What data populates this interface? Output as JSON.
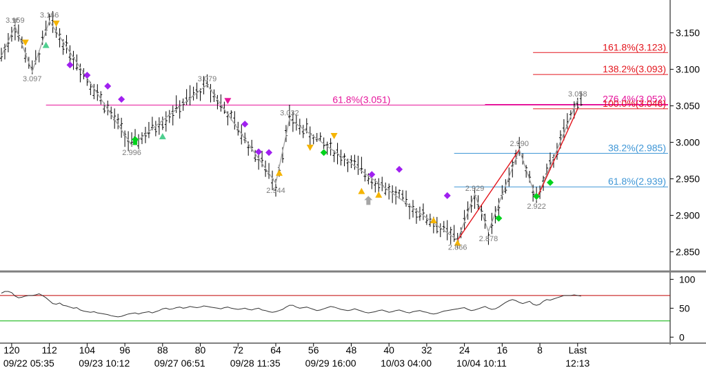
{
  "chart_data": {
    "type": "line",
    "title": "",
    "colors": {
      "price_bar": "#000000",
      "wave_line": "#a6a6a6",
      "fib_red": "#e3141c",
      "fib_magenta": "#e6159b",
      "fib_blue": "#3e96d6",
      "purple_marker": "#a020f0",
      "yellow_marker": "#f5b400",
      "green_marker": "#00d21c",
      "teal_marker": "#4fcf8f",
      "separator": "#7f7f7f",
      "osc_line": "#333333",
      "osc_upper": "#c00000",
      "osc_lower": "#00b000"
    },
    "price_panel": {
      "ylim": [
        2.825,
        3.195
      ],
      "yticks": [
        "3.150",
        "3.100",
        "3.050",
        "3.000",
        "2.950",
        "2.900",
        "2.850"
      ],
      "ytick_values": [
        3.15,
        3.1,
        3.05,
        3.0,
        2.95,
        2.9,
        2.85
      ],
      "swing_labels": [
        {
          "text": "3.159",
          "bar": 4,
          "price": 3.159,
          "pos": "above"
        },
        {
          "text": "3.166",
          "bar": 14,
          "price": 3.166,
          "pos": "above"
        },
        {
          "text": "3.097",
          "bar": 9,
          "price": 3.097,
          "pos": "below"
        },
        {
          "text": "2.996",
          "bar": 38,
          "price": 2.996,
          "pos": "below"
        },
        {
          "text": "3.079",
          "bar": 60,
          "price": 3.079,
          "pos": "above"
        },
        {
          "text": "2.944",
          "bar": 80,
          "price": 2.944,
          "pos": "below"
        },
        {
          "text": "3.032",
          "bar": 84,
          "price": 3.032,
          "pos": "above"
        },
        {
          "text": "2.866",
          "bar": 133,
          "price": 2.866,
          "pos": "below"
        },
        {
          "text": "2.929",
          "bar": 138,
          "price": 2.929,
          "pos": "above"
        },
        {
          "text": "2.878",
          "bar": 142,
          "price": 2.878,
          "pos": "below"
        },
        {
          "text": "2.990",
          "bar": 151,
          "price": 2.99,
          "pos": "above"
        },
        {
          "text": "2.922",
          "bar": 156,
          "price": 2.922,
          "pos": "below"
        },
        {
          "text": "3.058",
          "bar": 168,
          "price": 3.058,
          "pos": "above"
        }
      ],
      "fib_levels": [
        {
          "label": "161.8%(3.123)",
          "price": 3.123,
          "from_bar": 155,
          "color": "red"
        },
        {
          "label": "138.2%(3.093)",
          "price": 3.093,
          "from_bar": 155,
          "color": "red"
        },
        {
          "label": "61.8%(3.051)",
          "price": 3.051,
          "from_bar": 13,
          "color": "magenta",
          "label_bar": 105
        },
        {
          "label": "276.4%(3.052)",
          "price": 3.052,
          "from_bar": 141,
          "color": "magenta"
        },
        {
          "label": "100.0%(3.046)",
          "price": 3.046,
          "from_bar": 155,
          "color": "red"
        },
        {
          "label": "38.2%(2.985)",
          "price": 2.985,
          "from_bar": 132,
          "color": "blue"
        },
        {
          "label": "61.8%(2.939)",
          "price": 2.939,
          "from_bar": 132,
          "color": "blue"
        }
      ],
      "wave_lines": [
        {
          "color": "gray",
          "points": [
            [
              0,
              3.118
            ],
            [
              4,
              3.159
            ],
            [
              9,
              3.097
            ],
            [
              14,
              3.166
            ],
            [
              38,
              2.996
            ],
            [
              60,
              3.079
            ],
            [
              80,
              2.944
            ],
            [
              84,
              3.032
            ],
            [
              133,
              2.866
            ],
            [
              138,
              2.929
            ],
            [
              142,
              2.878
            ],
            [
              151,
              2.99
            ],
            [
              156,
              2.922
            ],
            [
              168,
              3.058
            ]
          ]
        },
        {
          "color": "red",
          "points": [
            [
              133,
              2.866
            ],
            [
              151,
              2.99
            ]
          ]
        },
        {
          "color": "red",
          "points": [
            [
              156,
              2.922
            ],
            [
              168,
              3.046
            ]
          ]
        }
      ],
      "markers": [
        {
          "bar": 4,
          "price": 3.166,
          "shape": "tri-down",
          "color": "gray"
        },
        {
          "bar": 7,
          "price": 3.137,
          "shape": "tri-down",
          "color": "yellow"
        },
        {
          "bar": 13,
          "price": 3.133,
          "shape": "tri-up",
          "color": "teal"
        },
        {
          "bar": 16,
          "price": 3.163,
          "shape": "tri-down",
          "color": "yellow"
        },
        {
          "bar": 20,
          "price": 3.106,
          "shape": "diamond",
          "color": "purple"
        },
        {
          "bar": 25,
          "price": 3.092,
          "shape": "diamond",
          "color": "purple"
        },
        {
          "bar": 31,
          "price": 3.077,
          "shape": "diamond",
          "color": "purple"
        },
        {
          "bar": 35,
          "price": 3.059,
          "shape": "diamond",
          "color": "purple"
        },
        {
          "bar": 39,
          "price": 3.002,
          "shape": "arrow-up",
          "color": "green"
        },
        {
          "bar": 47,
          "price": 3.008,
          "shape": "tri-up",
          "color": "teal"
        },
        {
          "bar": 66,
          "price": 3.057,
          "shape": "tri-down",
          "color": "magenta"
        },
        {
          "bar": 71,
          "price": 3.025,
          "shape": "diamond",
          "color": "purple"
        },
        {
          "bar": 75,
          "price": 2.987,
          "shape": "diamond",
          "color": "purple"
        },
        {
          "bar": 78,
          "price": 2.986,
          "shape": "diamond",
          "color": "purple"
        },
        {
          "bar": 81,
          "price": 2.958,
          "shape": "tri-up",
          "color": "yellow"
        },
        {
          "bar": 90,
          "price": 2.993,
          "shape": "tri-down",
          "color": "yellow"
        },
        {
          "bar": 94,
          "price": 2.986,
          "shape": "diamond",
          "color": "green"
        },
        {
          "bar": 97,
          "price": 3.009,
          "shape": "tri-down",
          "color": "yellow"
        },
        {
          "bar": 105,
          "price": 2.933,
          "shape": "tri-up",
          "color": "yellow"
        },
        {
          "bar": 107,
          "price": 2.92,
          "shape": "arrow-up",
          "color": "gray"
        },
        {
          "bar": 108,
          "price": 2.956,
          "shape": "diamond",
          "color": "purple"
        },
        {
          "bar": 110,
          "price": 2.928,
          "shape": "tri-up",
          "color": "yellow"
        },
        {
          "bar": 116,
          "price": 2.963,
          "shape": "diamond",
          "color": "purple"
        },
        {
          "bar": 126,
          "price": 2.893,
          "shape": "tri-up",
          "color": "yellow"
        },
        {
          "bar": 130,
          "price": 2.927,
          "shape": "diamond",
          "color": "purple"
        },
        {
          "bar": 133,
          "price": 2.862,
          "shape": "tri-up",
          "color": "yellow"
        },
        {
          "bar": 145,
          "price": 2.896,
          "shape": "diamond",
          "color": "green"
        },
        {
          "bar": 156,
          "price": 2.926,
          "shape": "diamond",
          "color": "green"
        },
        {
          "bar": 160,
          "price": 2.945,
          "shape": "diamond",
          "color": "green"
        }
      ]
    },
    "oscillator_panel": {
      "ylim": [
        -8,
        110
      ],
      "yticks": [
        "100",
        "50",
        "0"
      ],
      "ytick_values": [
        100,
        50,
        0
      ],
      "upper_line": 72,
      "lower_line": 28,
      "values": [
        76,
        79,
        79,
        77,
        71,
        68,
        69,
        71,
        72,
        72,
        73,
        75,
        72,
        68,
        63,
        58,
        57,
        59,
        55,
        54,
        52,
        50,
        51,
        47,
        45,
        44,
        43,
        44,
        42,
        41,
        40,
        39,
        37,
        36,
        35,
        36,
        38,
        40,
        41,
        42,
        40,
        42,
        43,
        44,
        42,
        44,
        46,
        49,
        50,
        48,
        49,
        51,
        52,
        50,
        51,
        53,
        52,
        51,
        52,
        54,
        53,
        52,
        51,
        50,
        49,
        51,
        52,
        50,
        49,
        48,
        49,
        50,
        48,
        47,
        49,
        50,
        47,
        46,
        44,
        43,
        44,
        46,
        48,
        52,
        55,
        55,
        52,
        50,
        51,
        52,
        50,
        48,
        46,
        47,
        49,
        51,
        53,
        52,
        50,
        48,
        47,
        46,
        47,
        49,
        47,
        45,
        43,
        42,
        43,
        44,
        46,
        47,
        45,
        43,
        44,
        46,
        47,
        45,
        43,
        42,
        44,
        45,
        46,
        44,
        43,
        41,
        40,
        41,
        43,
        45,
        46,
        47,
        48,
        49,
        50,
        51,
        48,
        46,
        47,
        49,
        51,
        53,
        50,
        48,
        49,
        52,
        56,
        60,
        63,
        65,
        63,
        60,
        58,
        60,
        62,
        57,
        55,
        57,
        62,
        65,
        64,
        66,
        68,
        70,
        72,
        72,
        72,
        73,
        72,
        71
      ]
    },
    "x_axis": {
      "bar_count": 170,
      "bar_ticks": [
        "120",
        "112",
        "104",
        "96",
        "88",
        "80",
        "72",
        "64",
        "56",
        "48",
        "40",
        "32",
        "24",
        "16",
        "8",
        "Last"
      ],
      "bar_tick_index": [
        3,
        14,
        25,
        36,
        47,
        58,
        69,
        80,
        91,
        102,
        113,
        124,
        135,
        146,
        157,
        168
      ],
      "date_ticks": [
        "09/22 05:35",
        "09/23 10:12",
        "09/27 06:51",
        "09/28 11:35",
        "09/29 16:00",
        "10/03 04:00",
        "10/04 10:11",
        "12:13"
      ],
      "date_tick_index": [
        8,
        30,
        52,
        74,
        96,
        118,
        140,
        168
      ]
    }
  }
}
